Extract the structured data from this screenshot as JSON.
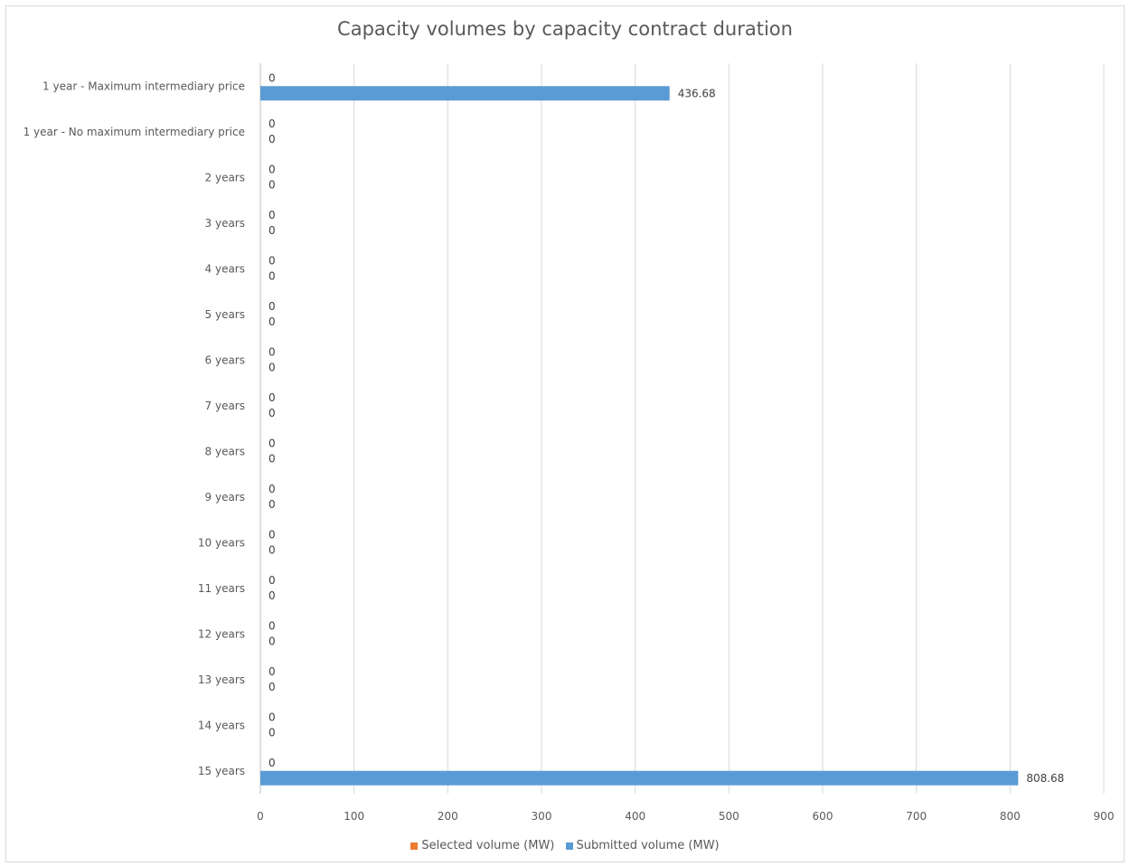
{
  "chart_data": {
    "type": "bar",
    "orientation": "horizontal",
    "title": "Capacity volumes by capacity contract duration",
    "categories": [
      "1 year - Maximum intermediary price",
      "1 year - No maximum intermediary price",
      "2 years",
      "3 years",
      "4 years",
      "5 years",
      "6 years",
      "7 years",
      "8 years",
      "9 years",
      "10 years",
      "11 years",
      "12 years",
      "13 years",
      "14 years",
      "15 years"
    ],
    "series": [
      {
        "name": "Selected volume (MW)",
        "color": "#ed7d31",
        "values": [
          0,
          0,
          0,
          0,
          0,
          0,
          0,
          0,
          0,
          0,
          0,
          0,
          0,
          0,
          0,
          0
        ],
        "labels": [
          "0",
          "0",
          "0",
          "0",
          "0",
          "0",
          "0",
          "0",
          "0",
          "0",
          "0",
          "0",
          "0",
          "0",
          "0",
          "0"
        ]
      },
      {
        "name": "Submitted volume (MW)",
        "color": "#5b9bd5",
        "values": [
          436.68,
          0,
          0,
          0,
          0,
          0,
          0,
          0,
          0,
          0,
          0,
          0,
          0,
          0,
          0,
          808.68
        ],
        "labels": [
          "436.68",
          "0",
          "0",
          "0",
          "0",
          "0",
          "0",
          "0",
          "0",
          "0",
          "0",
          "0",
          "0",
          "0",
          "0",
          "808.68"
        ]
      }
    ],
    "xlim": [
      0,
      900
    ],
    "xticks": [
      "0",
      "100",
      "200",
      "300",
      "400",
      "500",
      "600",
      "700",
      "800",
      "900"
    ],
    "grid": true,
    "legend_position": "bottom"
  }
}
